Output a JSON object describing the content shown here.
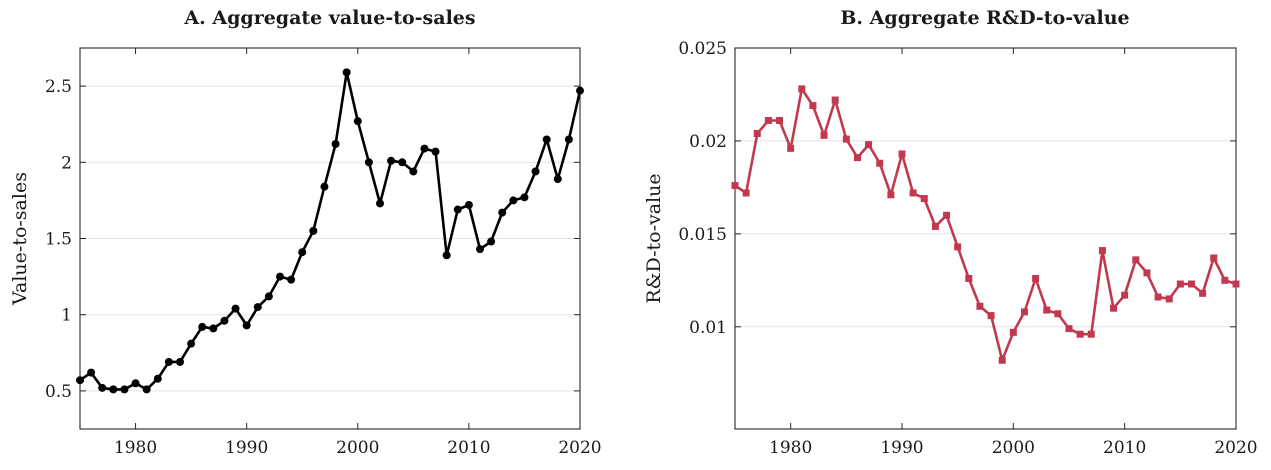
{
  "chart_data": [
    {
      "type": "line",
      "title": "A. Aggregate value-to-sales",
      "xlabel": "",
      "ylabel": "Value-to-sales",
      "xlim": [
        1975,
        2020
      ],
      "ylim": [
        0.25,
        2.75
      ],
      "xticks": [
        1980,
        1990,
        2000,
        2010,
        2020
      ],
      "yticks": [
        0.5,
        1,
        1.5,
        2,
        2.5
      ],
      "xtick_labels": [
        "1980",
        "1990",
        "2000",
        "2010",
        "2020"
      ],
      "ytick_labels": [
        "0.5",
        "1",
        "1.5",
        "2",
        "2.5"
      ],
      "grid": "horizontal",
      "color": "#000000",
      "marker": "circle",
      "series": [
        {
          "x": [
            1975,
            1976,
            1977,
            1978,
            1979,
            1980,
            1981,
            1982,
            1983,
            1984,
            1985,
            1986,
            1987,
            1988,
            1989,
            1990,
            1991,
            1992,
            1993,
            1994,
            1995,
            1996,
            1997,
            1998,
            1999,
            2000,
            2001,
            2002,
            2003,
            2004,
            2005,
            2006,
            2007,
            2008,
            2009,
            2010,
            2011,
            2012,
            2013,
            2014,
            2015,
            2016,
            2017,
            2018,
            2019,
            2020
          ],
          "values": [
            0.57,
            0.62,
            0.52,
            0.51,
            0.51,
            0.55,
            0.51,
            0.58,
            0.69,
            0.69,
            0.81,
            0.92,
            0.91,
            0.96,
            1.04,
            0.93,
            1.05,
            1.12,
            1.25,
            1.23,
            1.41,
            1.55,
            1.84,
            2.12,
            2.59,
            2.27,
            2.0,
            1.73,
            2.01,
            2.0,
            1.94,
            2.09,
            2.07,
            1.39,
            1.69,
            1.72,
            1.43,
            1.48,
            1.67,
            1.75,
            1.77,
            1.94,
            2.15,
            1.89,
            2.15,
            2.47
          ]
        }
      ]
    },
    {
      "type": "line",
      "title": "B. Aggregate R&D-to-value",
      "xlabel": "",
      "ylabel": "R&D-to-value",
      "xlim": [
        1975,
        2020
      ],
      "ylim": [
        0.0045,
        0.025
      ],
      "xticks": [
        1980,
        1990,
        2000,
        2010,
        2020
      ],
      "yticks": [
        0.01,
        0.015,
        0.02,
        0.025
      ],
      "xtick_labels": [
        "1980",
        "1990",
        "2000",
        "2010",
        "2020"
      ],
      "ytick_labels": [
        "0.01",
        "0.015",
        "0.02",
        "0.025"
      ],
      "grid": "horizontal",
      "color": "#c0394f",
      "marker": "square",
      "series": [
        {
          "x": [
            1975,
            1976,
            1977,
            1978,
            1979,
            1980,
            1981,
            1982,
            1983,
            1984,
            1985,
            1986,
            1987,
            1988,
            1989,
            1990,
            1991,
            1992,
            1993,
            1994,
            1995,
            1996,
            1997,
            1998,
            1999,
            2000,
            2001,
            2002,
            2003,
            2004,
            2005,
            2006,
            2007,
            2008,
            2009,
            2010,
            2011,
            2012,
            2013,
            2014,
            2015,
            2016,
            2017,
            2018,
            2019,
            2020
          ],
          "values": [
            0.0176,
            0.0172,
            0.0204,
            0.0211,
            0.0211,
            0.0196,
            0.0228,
            0.0219,
            0.0203,
            0.0222,
            0.0201,
            0.0191,
            0.0198,
            0.0188,
            0.0171,
            0.0193,
            0.0172,
            0.0169,
            0.0154,
            0.016,
            0.0143,
            0.0126,
            0.0111,
            0.0106,
            0.0082,
            0.0097,
            0.0108,
            0.0126,
            0.0109,
            0.0107,
            0.0099,
            0.0096,
            0.0096,
            0.0141,
            0.011,
            0.0117,
            0.0136,
            0.0129,
            0.0116,
            0.0115,
            0.0123,
            0.0123,
            0.0118,
            0.0137,
            0.0125,
            0.0123
          ]
        }
      ]
    }
  ]
}
